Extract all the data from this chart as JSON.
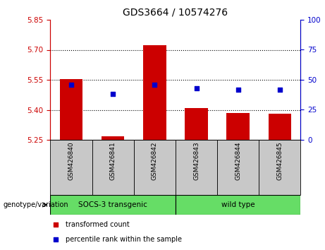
{
  "title": "GDS3664 / 10574276",
  "samples": [
    "GSM426840",
    "GSM426841",
    "GSM426842",
    "GSM426843",
    "GSM426844",
    "GSM426845"
  ],
  "transformed_counts": [
    5.552,
    5.268,
    5.723,
    5.41,
    5.385,
    5.382
  ],
  "percentile_ranks": [
    46,
    38,
    46,
    43,
    42,
    42
  ],
  "ylim_left": [
    5.25,
    5.85
  ],
  "ylim_right": [
    0,
    100
  ],
  "yticks_left": [
    5.25,
    5.4,
    5.55,
    5.7,
    5.85
  ],
  "yticks_right": [
    0,
    25,
    50,
    75,
    100
  ],
  "left_color": "#cc0000",
  "right_color": "#0000cc",
  "bar_bottom": 5.25,
  "group_bg_color": "#c8c8c8",
  "green_color": "#66dd66",
  "legend_red_label": "transformed count",
  "legend_blue_label": "percentile rank within the sample",
  "genotype_label": "genotype/variation",
  "plot_bg_color": "#ffffff",
  "bar_width": 0.55
}
